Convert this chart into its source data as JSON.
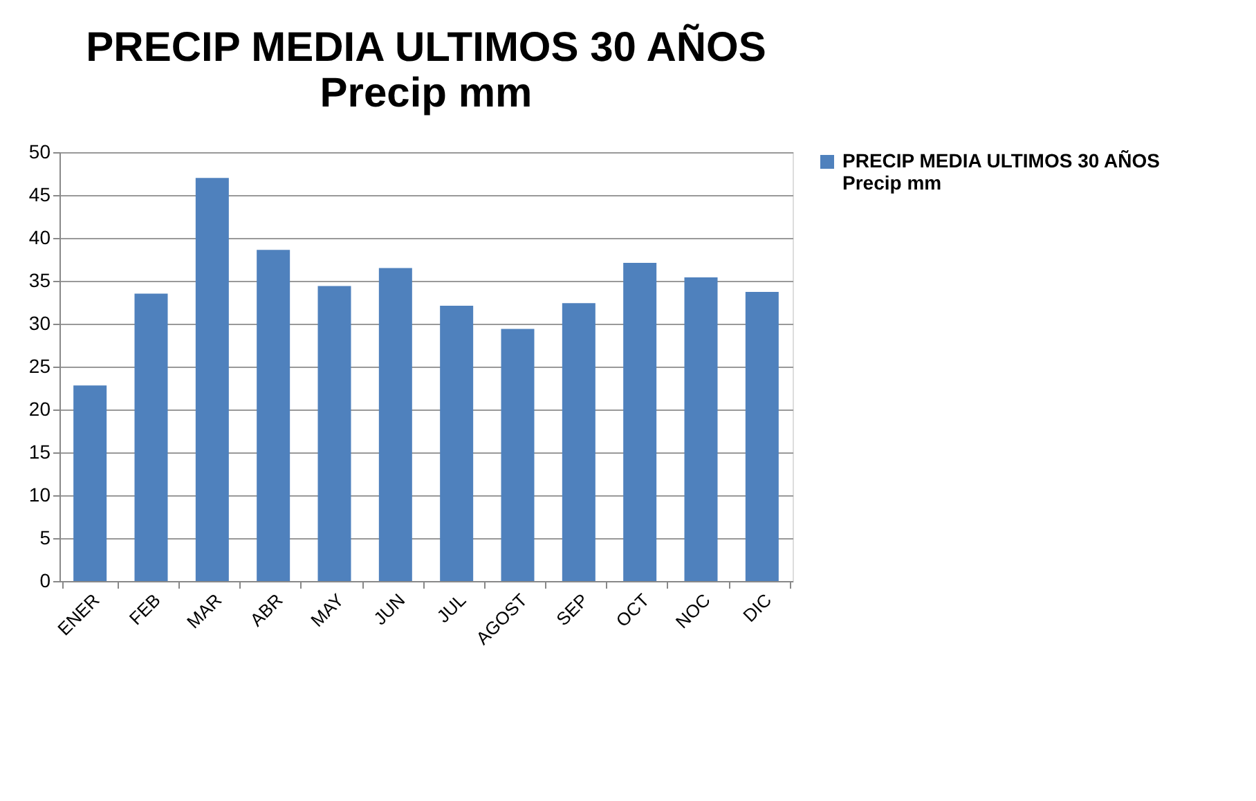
{
  "chart_data": {
    "type": "bar",
    "title": "PRECIP MEDIA ULTIMOS 30 AÑOS",
    "subtitle": "Precip mm",
    "categories": [
      "ENER",
      "FEB",
      "MAR",
      "ABR",
      "MAY",
      "JUN",
      "JUL",
      "AGOST",
      "SEP",
      "OCT",
      "NOC",
      "DIC"
    ],
    "series": [
      {
        "name": "PRECIP MEDIA ULTIMOS 30 AÑOS  Precip mm",
        "color": "#4f81bd",
        "values": [
          22.8,
          33.5,
          47.0,
          38.6,
          34.4,
          36.5,
          32.1,
          29.4,
          32.4,
          37.1,
          35.4,
          33.7
        ]
      }
    ],
    "ylim": [
      0,
      50
    ],
    "yticks": [
      0,
      5,
      10,
      15,
      20,
      25,
      30,
      35,
      40,
      45,
      50
    ],
    "grid": "y",
    "legend": "right"
  }
}
